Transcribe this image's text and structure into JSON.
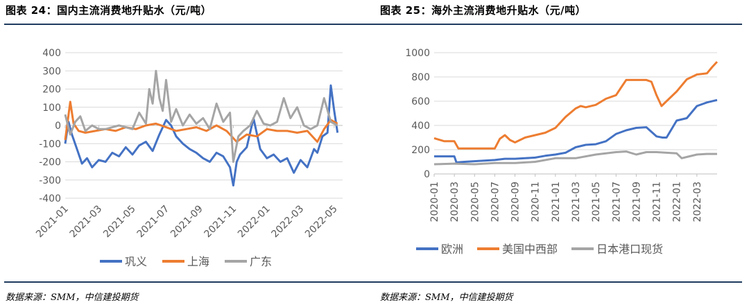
{
  "left": {
    "title": "图表 24：国内主流消费地升贴水（元/吨）",
    "source": "数据来源：SMM，中信建投期货",
    "chart_data": {
      "type": "line",
      "title": "国内主流消费地升贴水（元/吨）",
      "ylim": [
        -400,
        400
      ],
      "yticks": [
        -400,
        -300,
        -200,
        -100,
        0,
        100,
        200,
        300,
        400
      ],
      "xticks": [
        "2021-01",
        "2021-03",
        "2021-05",
        "2021-07",
        "2021-09",
        "2021-11",
        "2022-01",
        "2022-03",
        "2022-05"
      ],
      "xrange": [
        0,
        16.5
      ],
      "series": [
        {
          "name": "巩义",
          "color": "#4472C4",
          "x": [
            0,
            0.2,
            0.4,
            0.7,
            1.0,
            1.3,
            1.6,
            2.0,
            2.4,
            2.8,
            3.2,
            3.6,
            4.0,
            4.4,
            4.8,
            5.2,
            5.6,
            6.0,
            6.3,
            6.6,
            7.0,
            7.4,
            7.8,
            8.2,
            8.6,
            9.0,
            9.4,
            9.8,
            10.0,
            10.2,
            10.4,
            10.8,
            11.2,
            11.6,
            12.0,
            12.4,
            12.8,
            13.2,
            13.6,
            14.0,
            14.4,
            14.8,
            15.0,
            15.3,
            15.6,
            15.8,
            16.0,
            16.2
          ],
          "values": [
            -100,
            20,
            -50,
            -130,
            -210,
            -180,
            -230,
            -190,
            -200,
            -150,
            -170,
            -120,
            -160,
            -110,
            -90,
            -140,
            -50,
            30,
            0,
            -60,
            -100,
            -130,
            -150,
            -180,
            -200,
            -150,
            -170,
            -230,
            -330,
            -200,
            -160,
            -120,
            40,
            -130,
            -180,
            -160,
            -200,
            -180,
            -260,
            -190,
            -230,
            -130,
            -150,
            -60,
            -40,
            220,
            80,
            -40
          ]
        },
        {
          "name": "上海",
          "color": "#ED7D31",
          "x": [
            0,
            0.3,
            0.5,
            0.8,
            1.2,
            1.8,
            2.4,
            3.0,
            3.6,
            4.2,
            4.8,
            5.4,
            6.0,
            6.6,
            7.2,
            7.8,
            8.4,
            9.0,
            9.6,
            10.2,
            10.8,
            11.4,
            12.0,
            12.6,
            13.2,
            13.8,
            14.4,
            15.0,
            15.4,
            15.8,
            16.2
          ],
          "values": [
            -80,
            130,
            10,
            -30,
            -40,
            -30,
            -20,
            -30,
            -10,
            -20,
            0,
            10,
            -10,
            -30,
            -20,
            -10,
            -30,
            0,
            -30,
            -90,
            -50,
            -60,
            -20,
            -30,
            -30,
            -40,
            -30,
            -90,
            -20,
            30,
            10
          ]
        },
        {
          "name": "广东",
          "color": "#A5A5A5",
          "x": [
            0,
            0.3,
            0.6,
            0.9,
            1.2,
            1.6,
            2.0,
            2.4,
            2.8,
            3.2,
            3.6,
            4.0,
            4.4,
            4.8,
            5.0,
            5.2,
            5.4,
            5.6,
            5.8,
            6.0,
            6.3,
            6.6,
            7.0,
            7.4,
            7.8,
            8.2,
            8.6,
            9.0,
            9.4,
            9.8,
            10.0,
            10.3,
            10.6,
            11.0,
            11.4,
            11.8,
            12.2,
            12.6,
            13.0,
            13.4,
            13.8,
            14.2,
            14.6,
            15.0,
            15.4,
            15.8,
            16.2
          ],
          "values": [
            60,
            -50,
            20,
            50,
            -30,
            0,
            -20,
            -20,
            -10,
            0,
            -10,
            -20,
            70,
            10,
            200,
            120,
            300,
            150,
            80,
            250,
            20,
            90,
            0,
            60,
            10,
            40,
            -20,
            120,
            20,
            70,
            -200,
            -60,
            -30,
            0,
            80,
            10,
            0,
            20,
            150,
            40,
            100,
            0,
            -20,
            0,
            150,
            20,
            0
          ]
        }
      ]
    }
  },
  "right": {
    "title": "图表 25：海外主流消费地升贴水（元/吨）",
    "source": "数据来源：SMM，中信建投期货",
    "chart_data": {
      "type": "line",
      "title": "海外主流消费地升贴水（元/吨）",
      "ylim": [
        0,
        1000
      ],
      "yticks": [
        0,
        200,
        400,
        600,
        800,
        1000
      ],
      "xticks": [
        "2020-01",
        "2020-03",
        "2020-05",
        "2020-07",
        "2020-09",
        "2020-11",
        "2021-01",
        "2021-03",
        "2021-05",
        "2021-07",
        "2021-09",
        "2021-11",
        "2022-01",
        "2022-03"
      ],
      "xrange": [
        0,
        28
      ],
      "series": [
        {
          "name": "欧洲",
          "color": "#4472C4",
          "x": [
            0,
            1,
            2,
            2.2,
            3,
            4,
            5,
            6,
            7,
            8,
            9,
            10,
            11,
            12,
            13,
            14,
            15,
            16,
            17,
            18,
            19,
            20,
            21,
            22,
            22.6,
            23,
            24,
            25,
            26,
            27,
            28
          ],
          "values": [
            145,
            145,
            145,
            95,
            100,
            105,
            110,
            115,
            125,
            125,
            130,
            135,
            150,
            160,
            175,
            220,
            240,
            245,
            270,
            330,
            360,
            380,
            385,
            310,
            300,
            300,
            440,
            460,
            560,
            590,
            610
          ]
        },
        {
          "name": "美国中西部",
          "color": "#ED7D31",
          "x": [
            0,
            1,
            2,
            2.4,
            3,
            4,
            5,
            6,
            6.5,
            7,
            7.5,
            8,
            9,
            10,
            11,
            12,
            13,
            14,
            14.5,
            15,
            16,
            17,
            18,
            18.4,
            19,
            20,
            21,
            21.5,
            22,
            22.5,
            23,
            24,
            25,
            26,
            27,
            27.5,
            28
          ],
          "values": [
            295,
            270,
            270,
            210,
            210,
            210,
            210,
            210,
            290,
            320,
            280,
            260,
            300,
            320,
            340,
            380,
            470,
            540,
            560,
            550,
            570,
            620,
            650,
            700,
            775,
            775,
            775,
            760,
            650,
            560,
            600,
            680,
            780,
            820,
            830,
            880,
            925
          ]
        },
        {
          "name": "日本港口现货",
          "color": "#A5A5A5",
          "x": [
            0,
            2,
            4,
            6,
            8,
            10,
            12,
            14,
            16,
            18,
            19,
            20,
            21,
            22,
            23,
            24,
            24.5,
            25,
            26,
            27,
            28
          ],
          "values": [
            80,
            85,
            80,
            90,
            90,
            100,
            130,
            130,
            160,
            180,
            185,
            160,
            180,
            180,
            175,
            170,
            130,
            140,
            160,
            165,
            165
          ]
        }
      ]
    }
  }
}
